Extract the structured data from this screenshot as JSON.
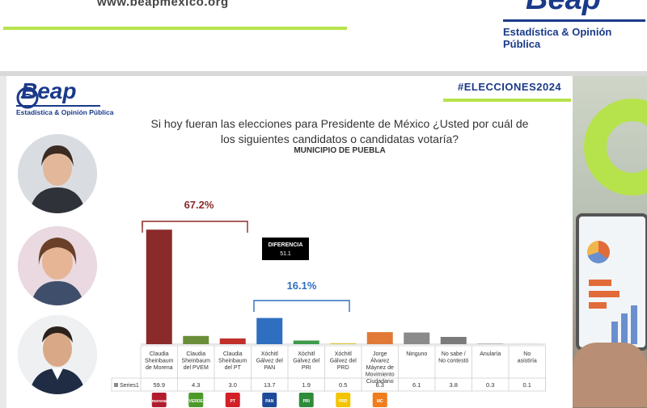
{
  "header": {
    "url": "www.beapmexico.org",
    "brand": "Beap",
    "brand_tagline": "Estadística & Opinión Pública"
  },
  "slide": {
    "brand": "Beap",
    "brand_tagline": "Estadística & Opinión Pública",
    "hashtag": "#ELECCIONES2024",
    "question": "Si hoy fueran las elecciones para Presidente de México ¿Usted por cuál de los siguientes candidatos o candidatas votaría?",
    "subtitle": "MUNICIPIO DE PUEBLA"
  },
  "colors": {
    "accent_green": "#b6e34b",
    "brand_blue": "#1a3a8a",
    "morena_red": "#8b2a2a",
    "pan_blue": "#2f6fbf"
  },
  "chart_data": {
    "type": "bar",
    "categories": [
      "Claudia Sheinbaum de Morena",
      "Claudia Sheinbaum del PVEM",
      "Claudia Sheinbaum del PT",
      "Xóchitl Gálvez del PAN",
      "Xóchitl Gálvez del PRI",
      "Xóchitl Gálvez del PRD",
      "Jorge Álvarez Máynez de Movimiento Ciudadano",
      "Ninguno",
      "No sabe / No contestó",
      "Anularía",
      "No asistiría"
    ],
    "series": [
      {
        "name": "Series1",
        "values": [
          59.9,
          4.3,
          3.0,
          13.7,
          1.9,
          0.5,
          6.3,
          6.1,
          3.8,
          0.3,
          0.1
        ],
        "value_labels": [
          "59.9",
          "4.3",
          "3.0",
          "13.7",
          "1.9",
          "0.5",
          "6.3",
          "6.1",
          "3.8",
          "0.3",
          "0.1"
        ]
      }
    ],
    "bar_colors": [
      "#8b2a2a",
      "#6b8e3a",
      "#c0302b",
      "#2f6fbf",
      "#3c9a4a",
      "#d8c43a",
      "#e07a36",
      "#8a8a8a",
      "#7a7a7a",
      "#9a9a9a",
      "#b0b0b0"
    ],
    "ylim": [
      0,
      60
    ],
    "annotations": {
      "sheinbaum_total": "67.2%",
      "xochitl_total": "16.1%",
      "difference_label": "DIFERENCIA",
      "difference_value": "51.1"
    },
    "party_logos": [
      "morena",
      "VERDE",
      "PT",
      "PAN",
      "PRI",
      "PRD",
      "MC"
    ]
  }
}
